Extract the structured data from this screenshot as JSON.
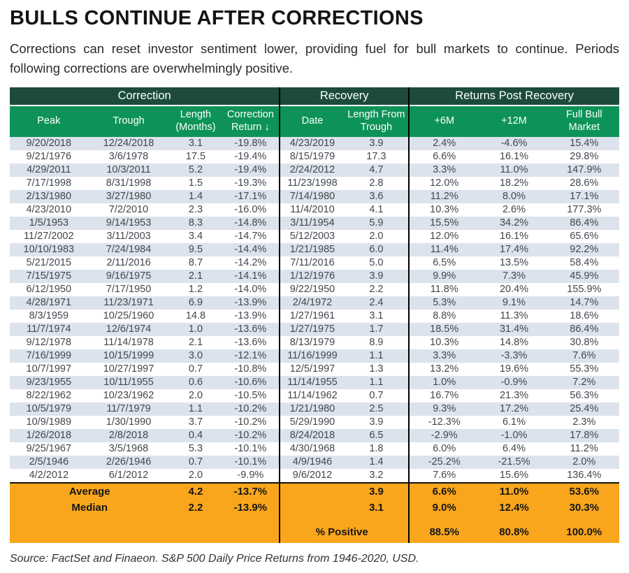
{
  "title": "BULLS CONTINUE AFTER CORRECTIONS",
  "subtitle": "Corrections can reset investor sentiment lower, providing fuel for bull markets to continue. Periods following corrections are overwhelmingly positive.",
  "source": "Source: FactSet and Finaeon. S&P 500 Daily Price Returns from 1946-2020, USD.",
  "colors": {
    "group_header_green": "#1C4B3A",
    "sub_header_green": "#0D9358",
    "row_stripe": "#DCE3EC",
    "footer_orange": "#F9A61C",
    "divider_black": "#000000"
  },
  "chart_data": {
    "type": "table",
    "title": "BULLS CONTINUE AFTER CORRECTIONS",
    "group_headers": [
      {
        "label": "Correction",
        "span": 4
      },
      {
        "label": "Recovery",
        "span": 2
      },
      {
        "label": "Returns Post Recovery",
        "span": 3
      }
    ],
    "columns": [
      "Peak",
      "Trough",
      "Length (Months)",
      "Correction Return ↓",
      "Date",
      "Length From Trough",
      "+6M",
      "+12M",
      "Full Bull Market"
    ],
    "rows": [
      [
        "9/20/2018",
        "12/24/2018",
        "3.1",
        "-19.8%",
        "4/23/2019",
        "3.9",
        "2.4%",
        "-4.6%",
        "15.4%"
      ],
      [
        "9/21/1976",
        "3/6/1978",
        "17.5",
        "-19.4%",
        "8/15/1979",
        "17.3",
        "6.6%",
        "16.1%",
        "29.8%"
      ],
      [
        "4/29/2011",
        "10/3/2011",
        "5.2",
        "-19.4%",
        "2/24/2012",
        "4.7",
        "3.3%",
        "11.0%",
        "147.9%"
      ],
      [
        "7/17/1998",
        "8/31/1998",
        "1.5",
        "-19.3%",
        "11/23/1998",
        "2.8",
        "12.0%",
        "18.2%",
        "28.6%"
      ],
      [
        "2/13/1980",
        "3/27/1980",
        "1.4",
        "-17.1%",
        "7/14/1980",
        "3.6",
        "11.2%",
        "8.0%",
        "17.1%"
      ],
      [
        "4/23/2010",
        "7/2/2010",
        "2.3",
        "-16.0%",
        "11/4/2010",
        "4.1",
        "10.3%",
        "2.6%",
        "177.3%"
      ],
      [
        "1/5/1953",
        "9/14/1953",
        "8.3",
        "-14.8%",
        "3/11/1954",
        "5.9",
        "15.5%",
        "34.2%",
        "86.4%"
      ],
      [
        "11/27/2002",
        "3/11/2003",
        "3.4",
        "-14.7%",
        "5/12/2003",
        "2.0",
        "12.0%",
        "16.1%",
        "65.6%"
      ],
      [
        "10/10/1983",
        "7/24/1984",
        "9.5",
        "-14.4%",
        "1/21/1985",
        "6.0",
        "11.4%",
        "17.4%",
        "92.2%"
      ],
      [
        "5/21/2015",
        "2/11/2016",
        "8.7",
        "-14.2%",
        "7/11/2016",
        "5.0",
        "6.5%",
        "13.5%",
        "58.4%"
      ],
      [
        "7/15/1975",
        "9/16/1975",
        "2.1",
        "-14.1%",
        "1/12/1976",
        "3.9",
        "9.9%",
        "7.3%",
        "45.9%"
      ],
      [
        "6/12/1950",
        "7/17/1950",
        "1.2",
        "-14.0%",
        "9/22/1950",
        "2.2",
        "11.8%",
        "20.4%",
        "155.9%"
      ],
      [
        "4/28/1971",
        "11/23/1971",
        "6.9",
        "-13.9%",
        "2/4/1972",
        "2.4",
        "5.3%",
        "9.1%",
        "14.7%"
      ],
      [
        "8/3/1959",
        "10/25/1960",
        "14.8",
        "-13.9%",
        "1/27/1961",
        "3.1",
        "8.8%",
        "11.3%",
        "18.6%"
      ],
      [
        "11/7/1974",
        "12/6/1974",
        "1.0",
        "-13.6%",
        "1/27/1975",
        "1.7",
        "18.5%",
        "31.4%",
        "86.4%"
      ],
      [
        "9/12/1978",
        "11/14/1978",
        "2.1",
        "-13.6%",
        "8/13/1979",
        "8.9",
        "10.3%",
        "14.8%",
        "30.8%"
      ],
      [
        "7/16/1999",
        "10/15/1999",
        "3.0",
        "-12.1%",
        "11/16/1999",
        "1.1",
        "3.3%",
        "-3.3%",
        "7.6%"
      ],
      [
        "10/7/1997",
        "10/27/1997",
        "0.7",
        "-10.8%",
        "12/5/1997",
        "1.3",
        "13.2%",
        "19.6%",
        "55.3%"
      ],
      [
        "9/23/1955",
        "10/11/1955",
        "0.6",
        "-10.6%",
        "11/14/1955",
        "1.1",
        "1.0%",
        "-0.9%",
        "7.2%"
      ],
      [
        "8/22/1962",
        "10/23/1962",
        "2.0",
        "-10.5%",
        "11/14/1962",
        "0.7",
        "16.7%",
        "21.3%",
        "56.3%"
      ],
      [
        "10/5/1979",
        "11/7/1979",
        "1.1",
        "-10.2%",
        "1/21/1980",
        "2.5",
        "9.3%",
        "17.2%",
        "25.4%"
      ],
      [
        "10/9/1989",
        "1/30/1990",
        "3.7",
        "-10.2%",
        "5/29/1990",
        "3.9",
        "-12.3%",
        "6.1%",
        "2.3%"
      ],
      [
        "1/26/2018",
        "2/8/2018",
        "0.4",
        "-10.2%",
        "8/24/2018",
        "6.5",
        "-2.9%",
        "-1.0%",
        "17.8%"
      ],
      [
        "9/25/1967",
        "3/5/1968",
        "5.3",
        "-10.1%",
        "4/30/1968",
        "1.8",
        "6.0%",
        "6.4%",
        "11.2%"
      ],
      [
        "2/5/1946",
        "2/26/1946",
        "0.7",
        "-10.1%",
        "4/9/1946",
        "1.4",
        "-25.2%",
        "-21.5%",
        "2.0%"
      ],
      [
        "4/2/2012",
        "6/1/2012",
        "2.0",
        "-9.9%",
        "9/6/2012",
        "3.2",
        "7.6%",
        "15.6%",
        "136.4%"
      ]
    ],
    "summary": {
      "average": {
        "label": "Average",
        "length_months": "4.2",
        "correction_return": "-13.7%",
        "recovery_length": "3.9",
        "m6": "6.6%",
        "m12": "11.0%",
        "full_bull": "53.6%"
      },
      "median": {
        "label": "Median",
        "length_months": "2.2",
        "correction_return": "-13.9%",
        "recovery_length": "3.1",
        "m6": "9.0%",
        "m12": "12.4%",
        "full_bull": "30.3%"
      },
      "percent_positive": {
        "label": "% Positive",
        "m6": "88.5%",
        "m12": "80.8%",
        "full_bull": "100.0%"
      }
    }
  }
}
